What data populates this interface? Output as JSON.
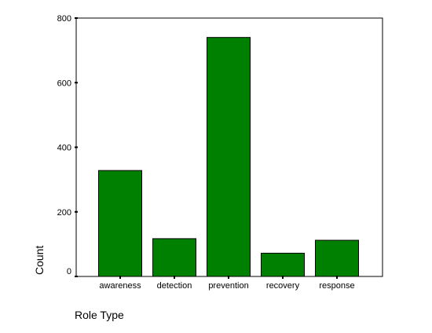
{
  "chart_data": {
    "type": "bar",
    "categories": [
      "awareness",
      "detection",
      "prevention",
      "recovery",
      "response"
    ],
    "values": [
      328,
      117,
      740,
      72,
      112
    ],
    "xlabel": "Role Type",
    "ylabel": "Count",
    "ylim": [
      0,
      800
    ],
    "yticks": [
      "0",
      "200",
      "400",
      "600",
      "800"
    ],
    "bar_color": "#008000",
    "grid": false
  }
}
